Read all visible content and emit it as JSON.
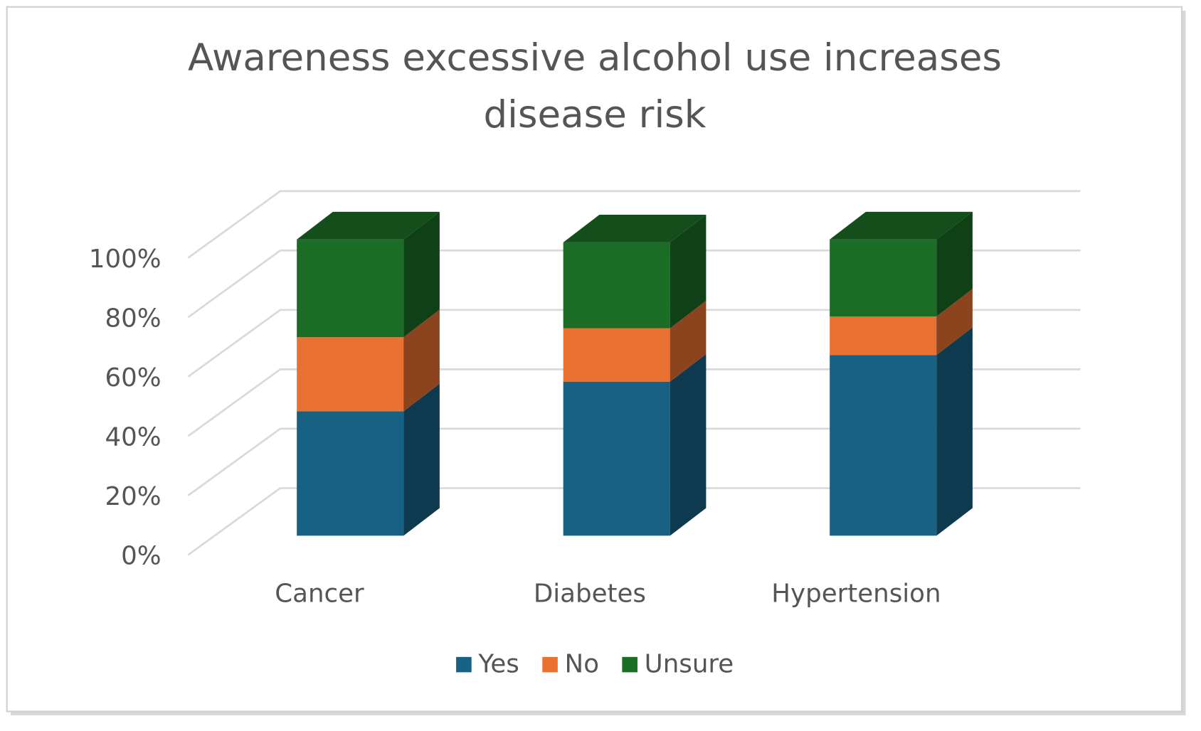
{
  "chart_data": {
    "type": "bar3d_stacked",
    "title": "Awareness excessive alcohol use increases disease risk",
    "categories": [
      "Cancer",
      "Diabetes",
      "Hypertension"
    ],
    "series": [
      {
        "name": "Yes",
        "color": "#176184",
        "values": [
          42,
          52,
          61
        ]
      },
      {
        "name": "No",
        "color": "#e97132",
        "values": [
          25,
          18,
          13
        ]
      },
      {
        "name": "Unsure",
        "color": "#1b6c25",
        "values": [
          33,
          29,
          26
        ]
      }
    ],
    "ylim": [
      0,
      100
    ],
    "yticks": [
      {
        "value": 0,
        "label": "0%"
      },
      {
        "value": 20,
        "label": "20%"
      },
      {
        "value": 40,
        "label": "40%"
      },
      {
        "value": 60,
        "label": "60%"
      },
      {
        "value": 80,
        "label": "80%"
      },
      {
        "value": 100,
        "label": "100%"
      }
    ],
    "grid": true,
    "legend": "bottom"
  }
}
